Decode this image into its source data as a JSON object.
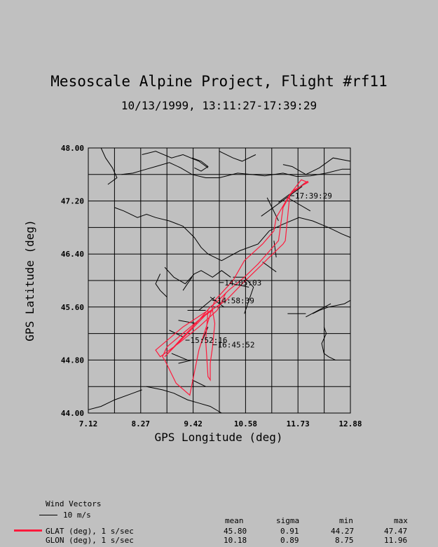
{
  "header": {
    "title": "Mesoscale Alpine Project, Flight #rf11",
    "subtitle": "10/13/1999, 13:11:27-17:39:29"
  },
  "colors": {
    "background": "#c0c0c0",
    "track": "#ff1a3c",
    "grid": "#000000"
  },
  "chart_data": {
    "type": "line",
    "xlabel": "GPS Longitude (deg)",
    "ylabel": "GPS Latitude (deg)",
    "xlim": [
      7.12,
      12.88
    ],
    "ylim": [
      44.0,
      48.0
    ],
    "x_ticks": [
      "7.12",
      "8.27",
      "9.42",
      "10.58",
      "11.73",
      "12.88"
    ],
    "y_ticks": [
      "48.00",
      "47.20",
      "46.40",
      "45.60",
      "44.80",
      "44.00"
    ],
    "grid": true,
    "series": [
      {
        "name": "GLAT (deg), 1 s/sec",
        "points": [
          [
            11.85,
            47.46
          ],
          [
            11.95,
            47.5
          ],
          [
            11.55,
            47.3
          ],
          [
            11.45,
            46.6
          ],
          [
            11.4,
            46.55
          ],
          [
            11.05,
            46.32
          ],
          [
            10.95,
            46.25
          ],
          [
            10.5,
            45.95
          ],
          [
            10.15,
            45.7
          ],
          [
            9.75,
            45.52
          ],
          [
            8.85,
            45.0
          ],
          [
            8.75,
            44.85
          ],
          [
            8.8,
            44.8
          ],
          [
            9.05,
            44.45
          ],
          [
            9.35,
            44.27
          ],
          [
            9.55,
            44.95
          ],
          [
            9.9,
            45.7
          ],
          [
            10.3,
            46.0
          ],
          [
            10.55,
            46.3
          ],
          [
            10.95,
            46.55
          ],
          [
            11.2,
            46.75
          ],
          [
            11.25,
            46.95
          ],
          [
            11.55,
            47.3
          ],
          [
            11.8,
            47.52
          ],
          [
            11.95,
            47.48
          ],
          [
            11.6,
            47.35
          ],
          [
            11.4,
            47.1
          ],
          [
            11.3,
            46.6
          ],
          [
            10.85,
            46.25
          ],
          [
            10.55,
            46.05
          ],
          [
            10.2,
            45.85
          ],
          [
            9.95,
            45.68
          ],
          [
            9.8,
            45.6
          ],
          [
            9.55,
            45.4
          ],
          [
            9.2,
            45.15
          ],
          [
            8.8,
            44.85
          ],
          [
            9.3,
            45.2
          ],
          [
            9.7,
            45.48
          ],
          [
            9.85,
            45.55
          ],
          [
            9.9,
            45.35
          ],
          [
            9.85,
            45.0
          ],
          [
            9.8,
            44.75
          ],
          [
            9.8,
            44.5
          ],
          [
            9.75,
            44.55
          ],
          [
            9.7,
            45.1
          ],
          [
            9.75,
            45.55
          ],
          [
            9.2,
            45.3
          ],
          [
            8.6,
            44.95
          ],
          [
            8.7,
            44.85
          ],
          [
            9.1,
            45.05
          ],
          [
            9.55,
            45.3
          ],
          [
            9.95,
            45.55
          ],
          [
            10.15,
            45.82
          ]
        ]
      }
    ],
    "annotations": [
      {
        "label": "17:39:29",
        "x": 11.6,
        "y": 47.28
      },
      {
        "label": "14:05:03",
        "x": 10.05,
        "y": 45.97
      },
      {
        "label": "14:58:39",
        "x": 9.89,
        "y": 45.7
      },
      {
        "label": "15:52:16",
        "x": 9.3,
        "y": 45.1
      },
      {
        "label": "16:45:52",
        "x": 9.9,
        "y": 45.03
      }
    ],
    "wind_vectors": [
      [
        11.82,
        47.42,
        -0.9,
        -0.45
      ],
      [
        11.9,
        47.48,
        -0.6,
        -0.3
      ],
      [
        11.5,
        47.25,
        0.5,
        -0.2
      ],
      [
        11.3,
        46.9,
        -0.25,
        0.35
      ],
      [
        11.2,
        46.6,
        0.05,
        -0.25
      ],
      [
        10.95,
        46.28,
        0.3,
        -0.15
      ],
      [
        10.3,
        45.95,
        0.35,
        -0.05
      ],
      [
        9.9,
        45.75,
        -0.35,
        -0.2
      ],
      [
        9.7,
        45.55,
        -0.4,
        0.0
      ],
      [
        9.5,
        45.35,
        -0.4,
        0.05
      ],
      [
        9.2,
        45.15,
        -0.3,
        0.1
      ],
      [
        8.95,
        44.9,
        0.35,
        -0.1
      ],
      [
        9.1,
        44.75,
        0.3,
        0.05
      ],
      [
        9.4,
        44.5,
        0.3,
        -0.1
      ],
      [
        11.9,
        45.45,
        0.55,
        0.2
      ],
      [
        11.5,
        45.5,
        0.4,
        0.0
      ],
      [
        10.1,
        45.6,
        -0.3,
        0.15
      ],
      [
        9.6,
        45.05,
        0.15,
        0.25
      ]
    ],
    "map_lines": [
      [
        [
          7.4,
          48.0
        ],
        [
          7.5,
          47.85
        ],
        [
          7.65,
          47.7
        ],
        [
          7.75,
          47.55
        ],
        [
          7.55,
          47.45
        ]
      ],
      [
        [
          7.85,
          47.6
        ],
        [
          8.1,
          47.62
        ],
        [
          8.4,
          47.68
        ],
        [
          8.6,
          47.72
        ],
        [
          8.9,
          47.78
        ],
        [
          9.15,
          47.7
        ],
        [
          9.4,
          47.6
        ],
        [
          9.7,
          47.55
        ],
        [
          10.0,
          47.55
        ],
        [
          10.4,
          47.62
        ],
        [
          10.7,
          47.6
        ],
        [
          11.0,
          47.58
        ],
        [
          11.4,
          47.62
        ],
        [
          11.7,
          47.57
        ],
        [
          12.0,
          47.58
        ],
        [
          12.35,
          47.62
        ],
        [
          12.7,
          47.68
        ],
        [
          12.88,
          47.68
        ]
      ],
      [
        [
          8.3,
          47.9
        ],
        [
          8.6,
          47.95
        ],
        [
          8.95,
          47.85
        ],
        [
          9.2,
          47.9
        ],
        [
          9.55,
          47.8
        ],
        [
          9.75,
          47.7
        ]
      ],
      [
        [
          9.4,
          47.85
        ],
        [
          9.6,
          47.8
        ],
        [
          9.75,
          47.72
        ],
        [
          9.6,
          47.65
        ],
        [
          9.45,
          47.7
        ]
      ],
      [
        [
          10.0,
          47.95
        ],
        [
          10.3,
          47.85
        ],
        [
          10.5,
          47.8
        ],
        [
          10.8,
          47.9
        ]
      ],
      [
        [
          11.4,
          47.75
        ],
        [
          11.6,
          47.72
        ],
        [
          11.9,
          47.6
        ],
        [
          12.2,
          47.7
        ],
        [
          12.5,
          47.85
        ],
        [
          12.88,
          47.8
        ]
      ],
      [
        [
          7.7,
          47.1
        ],
        [
          7.9,
          47.05
        ],
        [
          8.2,
          46.95
        ],
        [
          8.4,
          47.0
        ],
        [
          8.6,
          46.95
        ],
        [
          8.9,
          46.9
        ],
        [
          9.2,
          46.82
        ],
        [
          9.45,
          46.65
        ],
        [
          9.6,
          46.5
        ],
        [
          9.75,
          46.4
        ],
        [
          10.05,
          46.3
        ],
        [
          10.45,
          46.45
        ],
        [
          10.85,
          46.55
        ],
        [
          11.1,
          46.75
        ],
        [
          11.4,
          46.85
        ],
        [
          11.75,
          46.95
        ],
        [
          12.05,
          46.9
        ],
        [
          12.4,
          46.8
        ],
        [
          12.7,
          46.7
        ],
        [
          12.88,
          46.65
        ]
      ],
      [
        [
          8.8,
          46.2
        ],
        [
          9.0,
          46.05
        ],
        [
          9.25,
          45.95
        ],
        [
          9.45,
          46.1
        ],
        [
          9.6,
          46.15
        ],
        [
          9.85,
          46.05
        ],
        [
          10.05,
          46.15
        ],
        [
          10.25,
          46.05
        ]
      ],
      [
        [
          8.7,
          46.1
        ],
        [
          8.6,
          45.95
        ],
        [
          8.7,
          45.85
        ],
        [
          8.85,
          45.75
        ]
      ],
      [
        [
          9.2,
          45.85
        ],
        [
          9.3,
          45.95
        ],
        [
          9.4,
          46.05
        ]
      ],
      [
        [
          10.3,
          46.05
        ],
        [
          10.55,
          46.05
        ],
        [
          10.75,
          45.9
        ],
        [
          10.65,
          45.7
        ],
        [
          10.55,
          45.5
        ]
      ],
      [
        [
          12.05,
          45.5
        ],
        [
          12.2,
          45.55
        ],
        [
          12.4,
          45.6
        ],
        [
          12.55,
          45.62
        ],
        [
          12.75,
          45.65
        ],
        [
          12.88,
          45.7
        ]
      ],
      [
        [
          12.3,
          45.3
        ],
        [
          12.35,
          45.2
        ],
        [
          12.25,
          45.05
        ],
        [
          12.3,
          44.9
        ],
        [
          12.4,
          44.85
        ],
        [
          12.55,
          44.8
        ]
      ],
      [
        [
          8.4,
          44.4
        ],
        [
          8.75,
          44.35
        ],
        [
          9.0,
          44.3
        ],
        [
          9.3,
          44.2
        ],
        [
          9.55,
          44.15
        ],
        [
          9.8,
          44.1
        ],
        [
          10.05,
          44.0
        ]
      ],
      [
        [
          7.12,
          44.05
        ],
        [
          7.4,
          44.1
        ],
        [
          7.7,
          44.2
        ],
        [
          8.1,
          44.3
        ],
        [
          8.3,
          44.35
        ]
      ]
    ]
  },
  "legend": {
    "wind_title": "Wind Vectors",
    "wind_scale": "10 m/s",
    "stat_headers": [
      "mean",
      "sigma",
      "min",
      "max"
    ],
    "rows": [
      {
        "name": "GLAT (deg), 1 s/sec",
        "mean": "45.80",
        "sigma": "0.91",
        "min": "44.27",
        "max": "47.47"
      },
      {
        "name": "GLON (deg), 1 s/sec",
        "mean": "10.18",
        "sigma": "0.89",
        "min": "8.75",
        "max": "11.96"
      }
    ]
  }
}
